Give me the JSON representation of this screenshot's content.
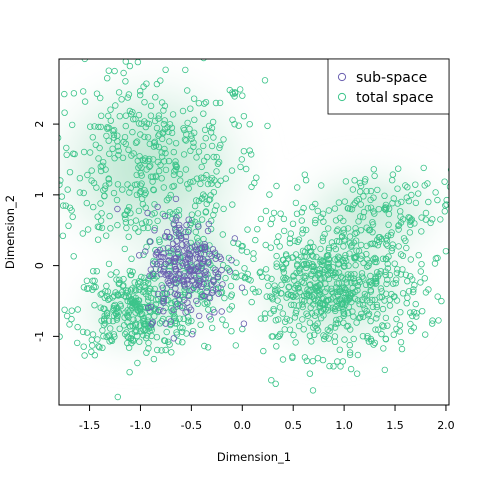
{
  "chart_data": {
    "type": "scatter",
    "title": "",
    "xlabel": "Dimension_1",
    "ylabel": "Dimension_2",
    "xlim": [
      -1.8,
      2.03
    ],
    "ylim": [
      -1.97,
      2.92
    ],
    "x_ticks": [
      "-1.5",
      "-1.0",
      "-0.5",
      "0.0",
      "0.5",
      "1.0",
      "1.5",
      "2.0"
    ],
    "x_tick_values": [
      -1.5,
      -1.0,
      -0.5,
      0.0,
      0.5,
      1.0,
      1.5,
      2.0
    ],
    "y_ticks": [
      "-1",
      "0",
      "1",
      "2"
    ],
    "y_tick_values": [
      -1,
      0,
      1,
      2
    ],
    "background": "2D kernel density contour of total space (light green shades)",
    "legend": {
      "placement": "top-right",
      "entries": [
        {
          "label": "sub-space",
          "color": "#6a5fb0"
        },
        {
          "label": "total space",
          "color": "#3cc48a"
        }
      ]
    },
    "series": [
      {
        "name": "total space",
        "color": "#3cc48a",
        "marker": "open-circle",
        "clusters": [
          {
            "center": [
              -0.9,
              1.4
            ],
            "spread": [
              0.55,
              0.7
            ],
            "approx_points": 450
          },
          {
            "center": [
              -1.05,
              -0.65
            ],
            "spread": [
              0.3,
              0.3
            ],
            "approx_points": 320
          },
          {
            "center": [
              0.9,
              -0.35
            ],
            "spread": [
              0.45,
              0.45
            ],
            "approx_points": 650
          },
          {
            "center": [
              1.25,
              0.75
            ],
            "spread": [
              0.4,
              0.3
            ],
            "approx_points": 150
          },
          {
            "center": [
              -0.5,
              0.0
            ],
            "spread": [
              0.25,
              0.45
            ],
            "approx_points": 120
          }
        ]
      },
      {
        "name": "sub-space",
        "color": "#6a5fb0",
        "marker": "open-circle",
        "clusters": [
          {
            "center": [
              -0.55,
              0.0
            ],
            "spread": [
              0.2,
              0.38
            ],
            "approx_points": 230
          }
        ]
      }
    ]
  }
}
